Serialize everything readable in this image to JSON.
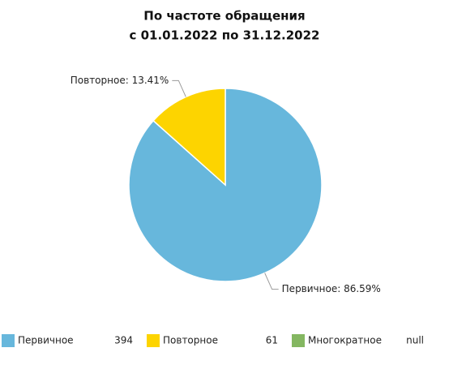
{
  "chart_data": {
    "type": "pie",
    "title": "По частоте обращения",
    "subtitle": "с 01.01.2022 по 31.12.2022",
    "categories": [
      "Первичное",
      "Повторное",
      "Многократное"
    ],
    "values": [
      86.59,
      13.41,
      null
    ],
    "value_labels": [
      "Первичное: 86.59%",
      "Повторное: 13.41%",
      null
    ],
    "counts": [
      394,
      61,
      "null"
    ],
    "colors": [
      "#67b7dc",
      "#fdd400",
      "#84b761"
    ]
  }
}
